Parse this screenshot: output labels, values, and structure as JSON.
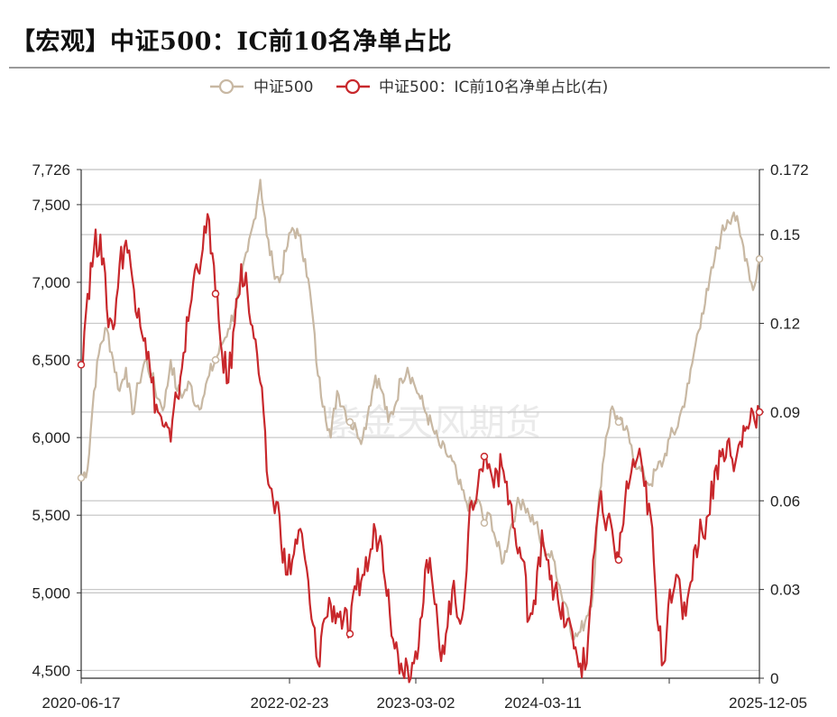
{
  "title": "【宏观】中证500：IC前10名净单占比",
  "watermark": "紫金天风期货",
  "legend": [
    {
      "label": "中证500",
      "color": "#c8b8a3"
    },
    {
      "label": "中证500：IC前10名净单占比(右)",
      "color": "#c8282c"
    }
  ],
  "chart_data": {
    "type": "line",
    "title": "【宏观】中证500：IC前10名净单占比",
    "x_tick_labels": [
      "2020-06-17",
      "2022-02-23",
      "2023-03-02",
      "2024-03-11",
      "",
      "2025-12-05"
    ],
    "y_left": {
      "ticks": [
        "4,500",
        "5,000",
        "5,500",
        "6,000",
        "6,500",
        "7,000",
        "7,500",
        "7,726"
      ],
      "range": [
        4450,
        7726
      ]
    },
    "y_right": {
      "ticks": [
        "0",
        "0.03",
        "0.06",
        "0.09",
        "0.12",
        "0.15",
        "0.172"
      ],
      "range": [
        0,
        0.172
      ]
    },
    "series": [
      {
        "name": "中证500",
        "axis": "left",
        "color": "#c8b8a3",
        "values": [
          5740,
          5800,
          6300,
          6600,
          6700,
          6500,
          6300,
          6450,
          6150,
          6350,
          6500,
          6400,
          6250,
          6200,
          6500,
          6300,
          6280,
          6350,
          6200,
          6250,
          6400,
          6500,
          6600,
          6700,
          6820,
          7000,
          7200,
          7400,
          7660,
          7300,
          7100,
          7000,
          7200,
          7350,
          7300,
          7150,
          6850,
          6400,
          6200,
          6000,
          6300,
          6200,
          6100,
          6050,
          6000,
          6200,
          6400,
          6300,
          6100,
          6200,
          6380,
          6450,
          6350,
          6250,
          6150,
          6050,
          5950,
          5900,
          5850,
          5700,
          5600,
          5550,
          5600,
          5450,
          5500,
          5300,
          5200,
          5400,
          5550,
          5600,
          5500,
          5450,
          5300,
          5250,
          5200,
          5000,
          4900,
          4700,
          4750,
          4850,
          5000,
          5650,
          6000,
          6200,
          6100,
          6050,
          5950,
          5800,
          5750,
          5700,
          5800,
          5850,
          6000,
          6050,
          6200,
          6350,
          6600,
          6800,
          6950,
          7150,
          7300,
          7400,
          7450,
          7300,
          7150,
          6950,
          7150
        ],
        "marker_indices": [
          0,
          21,
          42,
          63,
          84,
          106
        ]
      },
      {
        "name": "中证500：IC前10名净单占比(右)",
        "axis": "right",
        "color": "#c8282c",
        "values": [
          0.106,
          0.13,
          0.145,
          0.15,
          0.125,
          0.118,
          0.14,
          0.148,
          0.135,
          0.125,
          0.115,
          0.1,
          0.09,
          0.085,
          0.08,
          0.095,
          0.11,
          0.125,
          0.14,
          0.145,
          0.155,
          0.13,
          0.11,
          0.1,
          0.12,
          0.14,
          0.13,
          0.115,
          0.1,
          0.07,
          0.06,
          0.055,
          0.035,
          0.04,
          0.05,
          0.04,
          0.02,
          0.005,
          0.02,
          0.025,
          0.022,
          0.02,
          0.015,
          0.03,
          0.035,
          0.04,
          0.05,
          0.045,
          0.03,
          0.01,
          0.005,
          0.004,
          0.005,
          0.02,
          0.04,
          0.03,
          0.01,
          0.015,
          0.03,
          0.02,
          0.03,
          0.06,
          0.065,
          0.075,
          0.07,
          0.07,
          0.07,
          0.06,
          0.045,
          0.04,
          0.02,
          0.025,
          0.05,
          0.04,
          0.03,
          0.02,
          0.02,
          0.01,
          0.005,
          0.005,
          0.04,
          0.06,
          0.05,
          0.05,
          0.04,
          0.06,
          0.07,
          0.075,
          0.065,
          0.055,
          0.02,
          0.005,
          0.03,
          0.035,
          0.02,
          0.03,
          0.045,
          0.05,
          0.055,
          0.07,
          0.075,
          0.08,
          0.07,
          0.08,
          0.085,
          0.09,
          0.09
        ],
        "marker_indices": [
          0,
          21,
          42,
          63,
          84,
          106
        ]
      }
    ]
  }
}
